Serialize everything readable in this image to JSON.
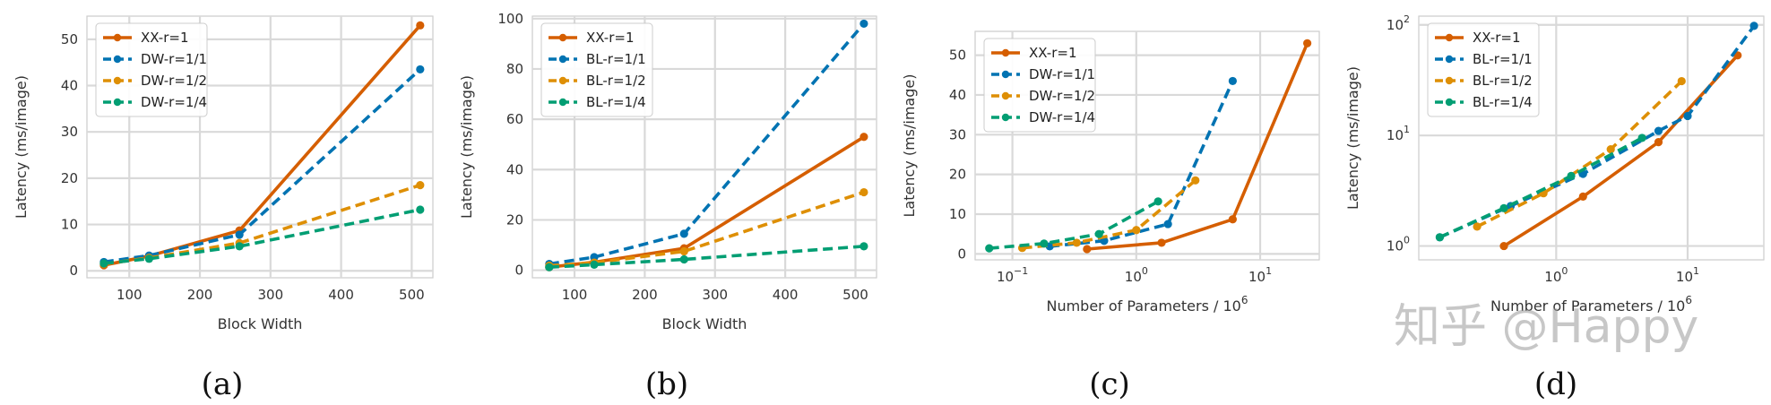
{
  "colors": {
    "orange": "#d55e00",
    "blue": "#0173b2",
    "gold": "#de8f05",
    "green": "#029e73",
    "grid": "#d9d9d9"
  },
  "watermark": "知乎 @Happy",
  "chart_data": [
    {
      "type": "line",
      "caption": "(a)",
      "xlabel": "Block Width",
      "ylabel": "Latency (ms/image)",
      "xscale": "linear",
      "yscale": "linear",
      "xlim": [
        40,
        530
      ],
      "ylim": [
        -1.5,
        55
      ],
      "xticks": [
        100,
        200,
        300,
        400,
        500
      ],
      "xtick_labels": [
        "100",
        "200",
        "300",
        "400",
        "500"
      ],
      "yticks": [
        0,
        10,
        20,
        30,
        40,
        50
      ],
      "ytick_labels": [
        "0",
        "10",
        "20",
        "30",
        "40",
        "50"
      ],
      "grid": true,
      "legend": "top-left",
      "series": [
        {
          "name": "XX-r=1",
          "color": "#d55e00",
          "style": "solid",
          "x": [
            64,
            128,
            256,
            512
          ],
          "y": [
            1.2,
            3.2,
            8.7,
            53.0
          ]
        },
        {
          "name": "DW-r=1/1",
          "color": "#0173b2",
          "style": "dashed",
          "x": [
            64,
            128,
            256,
            512
          ],
          "y": [
            1.9,
            3.3,
            7.8,
            43.5
          ]
        },
        {
          "name": "DW-r=1/2",
          "color": "#de8f05",
          "style": "dashed",
          "x": [
            64,
            128,
            256,
            512
          ],
          "y": [
            1.5,
            2.8,
            6.0,
            18.5
          ]
        },
        {
          "name": "DW-r=1/4",
          "color": "#029e73",
          "style": "dashed",
          "x": [
            64,
            128,
            256,
            512
          ],
          "y": [
            1.6,
            2.6,
            5.3,
            13.2
          ]
        }
      ]
    },
    {
      "type": "line",
      "caption": "(b)",
      "xlabel": "Block Width",
      "ylabel": "Latency (ms/image)",
      "xscale": "linear",
      "yscale": "linear",
      "xlim": [
        40,
        530
      ],
      "ylim": [
        -3,
        101
      ],
      "xticks": [
        100,
        200,
        300,
        400,
        500
      ],
      "xtick_labels": [
        "100",
        "200",
        "300",
        "400",
        "500"
      ],
      "yticks": [
        0,
        20,
        40,
        60,
        80,
        100
      ],
      "ytick_labels": [
        "0",
        "20",
        "40",
        "60",
        "80",
        "100"
      ],
      "grid": true,
      "legend": "top-left",
      "series": [
        {
          "name": "XX-r=1",
          "color": "#d55e00",
          "style": "solid",
          "x": [
            64,
            128,
            256,
            512
          ],
          "y": [
            1.2,
            3.2,
            8.7,
            53.0
          ]
        },
        {
          "name": "BL-r=1/1",
          "color": "#0173b2",
          "style": "dashed",
          "x": [
            64,
            128,
            256,
            512
          ],
          "y": [
            2.5,
            5.2,
            14.5,
            98.0
          ]
        },
        {
          "name": "BL-r=1/2",
          "color": "#de8f05",
          "style": "dashed",
          "x": [
            64,
            128,
            256,
            512
          ],
          "y": [
            1.8,
            3.0,
            7.5,
            31.0
          ]
        },
        {
          "name": "BL-r=1/4",
          "color": "#029e73",
          "style": "dashed",
          "x": [
            64,
            128,
            256,
            512
          ],
          "y": [
            1.2,
            2.2,
            4.3,
            9.5
          ]
        }
      ]
    },
    {
      "type": "line",
      "caption": "(c)",
      "xlabel": "Number of Parameters / 10",
      "xlabel_sup": "6",
      "ylabel": "Latency (ms/image)",
      "xscale": "log",
      "yscale": "linear",
      "xlim": [
        0.05,
        30
      ],
      "ylim": [
        -1.5,
        56
      ],
      "xticks": [
        0.1,
        1,
        10
      ],
      "xtick_labels": [
        {
          "base": "10",
          "exp": "−1"
        },
        {
          "base": "10",
          "exp": "0"
        },
        {
          "base": "10",
          "exp": "1"
        }
      ],
      "yticks": [
        0,
        10,
        20,
        30,
        40,
        50
      ],
      "ytick_labels": [
        "0",
        "10",
        "20",
        "30",
        "40",
        "50"
      ],
      "grid": true,
      "legend": "top-left",
      "series": [
        {
          "name": "XX-r=1",
          "color": "#d55e00",
          "style": "solid",
          "x": [
            0.4,
            1.6,
            6.0,
            24.0
          ],
          "y": [
            1.2,
            2.8,
            8.7,
            53.0
          ]
        },
        {
          "name": "DW-r=1/1",
          "color": "#0173b2",
          "style": "dashed",
          "x": [
            0.2,
            0.55,
            1.8,
            6.0
          ],
          "y": [
            1.9,
            3.3,
            7.5,
            43.5
          ]
        },
        {
          "name": "DW-r=1/2",
          "color": "#de8f05",
          "style": "dashed",
          "x": [
            0.12,
            0.33,
            1.0,
            3.0
          ],
          "y": [
            1.5,
            2.8,
            6.0,
            18.5
          ]
        },
        {
          "name": "DW-r=1/4",
          "color": "#029e73",
          "style": "dashed",
          "x": [
            0.065,
            0.18,
            0.5,
            1.5
          ],
          "y": [
            1.4,
            2.6,
            5.0,
            13.2
          ]
        }
      ]
    },
    {
      "type": "line",
      "caption": "(d)",
      "xlabel": "Number of Parameters / 10",
      "xlabel_sup": "6",
      "ylabel": "Latency (ms/image)",
      "xscale": "log",
      "yscale": "log",
      "xlim": [
        0.09,
        38
      ],
      "ylim": [
        0.75,
        120
      ],
      "xticks": [
        1,
        10
      ],
      "xtick_labels": [
        {
          "base": "10",
          "exp": "0"
        },
        {
          "base": "10",
          "exp": "1"
        }
      ],
      "yticks": [
        1,
        10,
        100
      ],
      "ytick_labels": [
        {
          "base": "10",
          "exp": "0"
        },
        {
          "base": "10",
          "exp": "1"
        },
        {
          "base": "10",
          "exp": "2"
        }
      ],
      "grid": true,
      "legend": "top-left",
      "series": [
        {
          "name": "XX-r=1",
          "color": "#d55e00",
          "style": "solid",
          "x": [
            0.4,
            1.6,
            6.0,
            24.0
          ],
          "y": [
            1.0,
            2.8,
            8.7,
            53.0
          ]
        },
        {
          "name": "BL-r=1/1",
          "color": "#0173b2",
          "style": "dashed",
          "x": [
            0.13,
            0.45,
            1.6,
            6.0,
            10.0,
            32.0
          ],
          "y": [
            1.2,
            2.3,
            4.5,
            11.0,
            15.0,
            98.0
          ]
        },
        {
          "name": "BL-r=1/2",
          "color": "#de8f05",
          "style": "dashed",
          "x": [
            0.25,
            0.8,
            2.6,
            9.0
          ],
          "y": [
            1.5,
            3.0,
            7.5,
            31.0
          ]
        },
        {
          "name": "BL-r=1/4",
          "color": "#029e73",
          "style": "dashed",
          "x": [
            0.13,
            0.4,
            1.3,
            4.5
          ],
          "y": [
            1.2,
            2.2,
            4.3,
            9.5
          ]
        }
      ]
    }
  ]
}
